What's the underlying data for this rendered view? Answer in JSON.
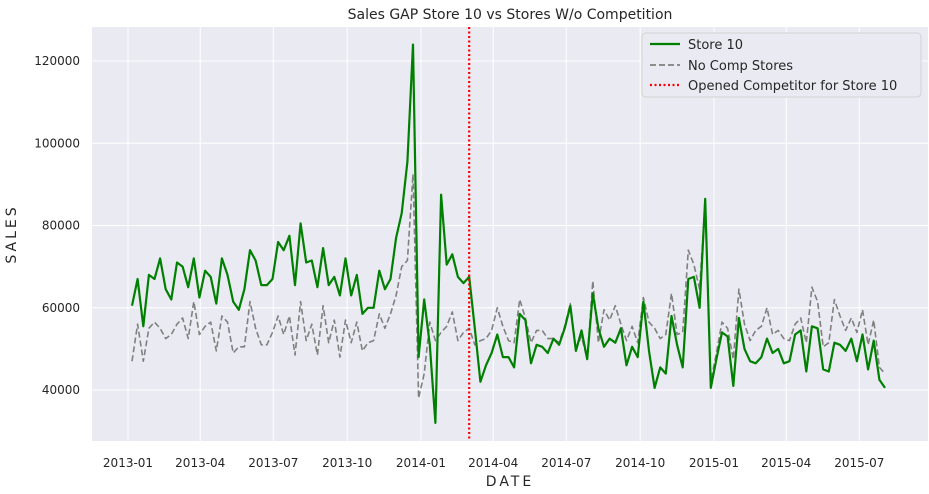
{
  "chart_data": {
    "type": "line",
    "title": "Sales GAP Store 10 vs Stores W/o Competition",
    "xlabel": "DATE",
    "ylabel": "SALES",
    "x_ticks": [
      "2013-01",
      "2013-04",
      "2013-07",
      "2013-10",
      "2014-01",
      "2014-04",
      "2014-07",
      "2014-10",
      "2015-01",
      "2015-04",
      "2015-07"
    ],
    "y_ticks": [
      "40000",
      "60000",
      "80000",
      "100000",
      "120000"
    ],
    "ylim": [
      28000,
      128000
    ],
    "grid": true,
    "legend_position": "top-right",
    "start_date": "2013-01-06",
    "interval_days": 7,
    "series": [
      {
        "name": "Store 10",
        "color": "#008000",
        "style": "solid",
        "values": [
          60500,
          67000,
          55500,
          68000,
          67000,
          72000,
          64500,
          62000,
          71000,
          70000,
          65000,
          72000,
          62500,
          69000,
          67500,
          61000,
          72000,
          68000,
          61500,
          59500,
          64500,
          74000,
          71500,
          65500,
          65500,
          67000,
          76000,
          74000,
          77500,
          65500,
          80500,
          71000,
          71500,
          65000,
          74500,
          65500,
          67500,
          63000,
          72000,
          63000,
          68000,
          58500,
          60000,
          60000,
          69000,
          64500,
          67000,
          77000,
          83000,
          95500,
          124000,
          48000,
          62000,
          51000,
          32000,
          87500,
          70500,
          73000,
          67500,
          66000,
          67500,
          55000,
          42000,
          46000,
          49000,
          53500,
          48000,
          48000,
          45500,
          58500,
          57000,
          46500,
          51000,
          50500,
          49000,
          52500,
          51000,
          55000,
          60500,
          49500,
          54500,
          47500,
          63500,
          55000,
          50500,
          52500,
          51500,
          55000,
          46000,
          50500,
          48000,
          61500,
          49500,
          40500,
          45500,
          44000,
          58000,
          51000,
          45500,
          67000,
          67500,
          60000,
          86500,
          40500,
          47500,
          54000,
          53000,
          41000,
          57500,
          50000,
          47000,
          46500,
          48000,
          52500,
          49000,
          50000,
          46500,
          47000,
          53500,
          54500,
          44500,
          55500,
          55000,
          45000,
          44500,
          51500,
          51000,
          49500,
          52500,
          47000,
          53500,
          45000,
          52000,
          42500,
          40500
        ]
      },
      {
        "name": "No Comp Stores",
        "color": "#808080",
        "style": "dashed",
        "values": [
          47000,
          56000,
          47000,
          55000,
          56500,
          55000,
          52500,
          53500,
          56000,
          57500,
          52500,
          61500,
          53500,
          55500,
          56500,
          49500,
          58000,
          56500,
          49000,
          50500,
          50500,
          61500,
          55000,
          51000,
          51000,
          54000,
          58000,
          53500,
          58000,
          48500,
          61500,
          52000,
          56000,
          48500,
          60500,
          51500,
          57000,
          48000,
          57000,
          51500,
          56500,
          49500,
          51500,
          52000,
          58500,
          55000,
          58500,
          63000,
          70000,
          71500,
          92500,
          38000,
          44000,
          56500,
          52000,
          54000,
          55500,
          59000,
          52000,
          54000,
          55000,
          51000,
          52000,
          52500,
          54500,
          60000,
          55500,
          52000,
          51500,
          62000,
          57500,
          51500,
          54500,
          54500,
          52500,
          52500,
          51500,
          55500,
          61000,
          50000,
          53000,
          47500,
          66500,
          51500,
          59500,
          57000,
          60500,
          56000,
          52000,
          55500,
          51500,
          62500,
          56500,
          55000,
          52500,
          53500,
          63500,
          53500,
          54000,
          74000,
          70500,
          64500,
          86000,
          42000,
          49000,
          56500,
          55000,
          47500,
          64500,
          56000,
          52000,
          54500,
          55500,
          60000,
          53500,
          54500,
          52500,
          52000,
          56000,
          57500,
          51500,
          65000,
          61500,
          50500,
          51500,
          62000,
          58000,
          54500,
          57500,
          54000,
          59500,
          51000,
          57000,
          45500,
          44000
        ]
      },
      {
        "name": "Opened Competitor for Store 10",
        "color": "#ff0000",
        "style": "dotted",
        "type": "vline",
        "x": "2014-03-02"
      }
    ]
  }
}
